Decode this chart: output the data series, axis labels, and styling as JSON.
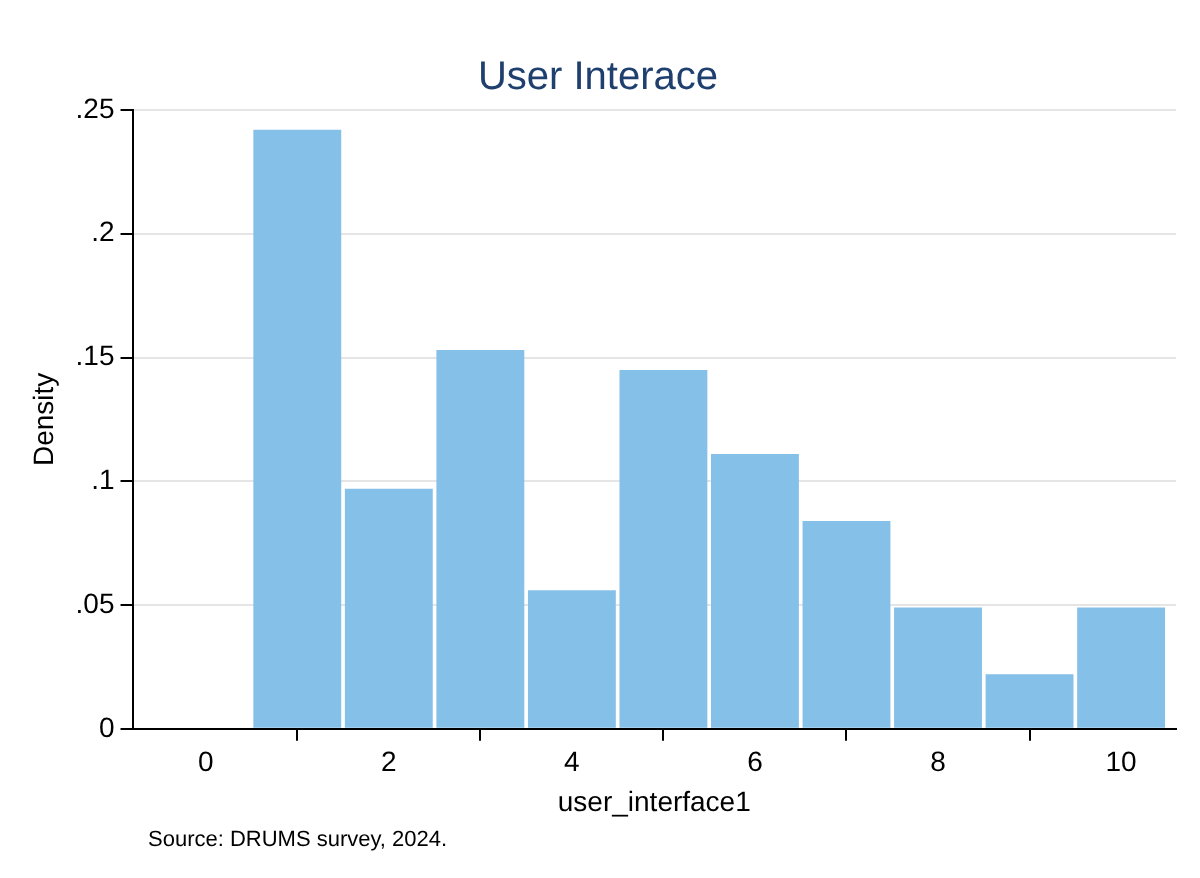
{
  "chart_data": {
    "type": "histogram",
    "title": "User Interace",
    "xlabel": "user_interface1",
    "ylabel": "Density",
    "bins": [
      0.5,
      1.5,
      2.5,
      3.5,
      4.5,
      5.5,
      6.5,
      7.5,
      8.5,
      9.5,
      10.5
    ],
    "values": [
      0.242,
      0.097,
      0.153,
      0.056,
      0.145,
      0.111,
      0.084,
      0.049,
      0.022,
      0.049
    ],
    "color": "#85c0e9",
    "xlim": [
      -0.8,
      10.6
    ],
    "xticks": [
      0,
      2,
      4,
      6,
      8,
      10
    ],
    "ylim": [
      0,
      0.25
    ],
    "yticks": [
      0,
      {
        "value": 0.05,
        "label": ".05"
      },
      {
        "value": 0.1,
        "label": ".1"
      },
      {
        "value": 0.15,
        "label": ".15"
      },
      {
        "value": 0.2,
        "label": ".2"
      },
      {
        "value": 0.25,
        "label": ".25"
      }
    ],
    "grid": "y",
    "annotations": [
      "Source: DRUMS survey, 2024."
    ]
  }
}
